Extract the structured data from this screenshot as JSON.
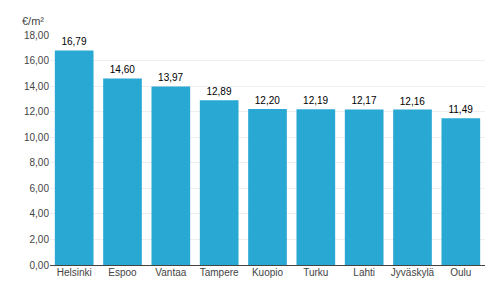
{
  "chart_data": {
    "type": "bar",
    "ylabel": "€/m²",
    "categories": [
      "Helsinki",
      "Espoo",
      "Vantaa",
      "Tampere",
      "Kuopio",
      "Turku",
      "Lahti",
      "Jyväskylä",
      "Oulu"
    ],
    "values": [
      16.79,
      14.6,
      13.97,
      12.89,
      12.2,
      12.19,
      12.17,
      12.16,
      11.49
    ],
    "value_labels": [
      "16,79",
      "14,60",
      "13,97",
      "12,89",
      "12,20",
      "12,19",
      "12,17",
      "12,16",
      "11,49"
    ],
    "data_labels": true,
    "color": "#29a8d4",
    "ylim": [
      0,
      18
    ],
    "yticks": [
      {
        "value": 0,
        "label": "0,00"
      },
      {
        "value": 2,
        "label": "2,00"
      },
      {
        "value": 4,
        "label": "4,00"
      },
      {
        "value": 6,
        "label": "6,00"
      },
      {
        "value": 8,
        "label": "8,00"
      },
      {
        "value": 10,
        "label": "10,00"
      },
      {
        "value": 12,
        "label": "12,00"
      },
      {
        "value": 14,
        "label": "14,00"
      },
      {
        "value": 16,
        "label": "16,00"
      },
      {
        "value": 18,
        "label": "18,00"
      }
    ],
    "grid": true
  }
}
